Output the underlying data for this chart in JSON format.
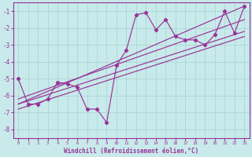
{
  "xlabel": "Windchill (Refroidissement éolien,°C)",
  "background_color": "#c8eaea",
  "grid_color": "#b0d8d8",
  "line_color": "#993399",
  "x_data": [
    0,
    1,
    2,
    3,
    4,
    5,
    6,
    7,
    8,
    9,
    10,
    11,
    12,
    13,
    14,
    15,
    16,
    17,
    18,
    19,
    20,
    21,
    22,
    23
  ],
  "y_data": [
    -5.0,
    -6.5,
    -6.5,
    -6.2,
    -5.2,
    -5.3,
    -5.5,
    -6.8,
    -6.8,
    -7.6,
    -4.2,
    -3.3,
    -1.2,
    -1.1,
    -2.1,
    -1.5,
    -2.5,
    -2.7,
    -2.7,
    -3.0,
    -2.4,
    -1.0,
    -2.3,
    -0.7
  ],
  "xlim": [
    -0.5,
    23.5
  ],
  "ylim": [
    -8.5,
    -0.5
  ],
  "yticks": [
    -8,
    -7,
    -6,
    -5,
    -4,
    -3,
    -2,
    -1
  ],
  "xticks": [
    0,
    1,
    2,
    3,
    4,
    5,
    6,
    7,
    8,
    9,
    10,
    11,
    12,
    13,
    14,
    15,
    16,
    17,
    18,
    19,
    20,
    21,
    22,
    23
  ],
  "reg_lines": [
    {
      "x0": 0,
      "y0": -6.5,
      "x1": 23,
      "y1": -0.7
    },
    {
      "x0": 0,
      "y0": -6.2,
      "x1": 23,
      "y1": -1.5
    },
    {
      "x0": 0,
      "y0": -6.5,
      "x1": 23,
      "y1": -2.2
    },
    {
      "x0": 0,
      "y0": -6.8,
      "x1": 23,
      "y1": -2.5
    }
  ]
}
